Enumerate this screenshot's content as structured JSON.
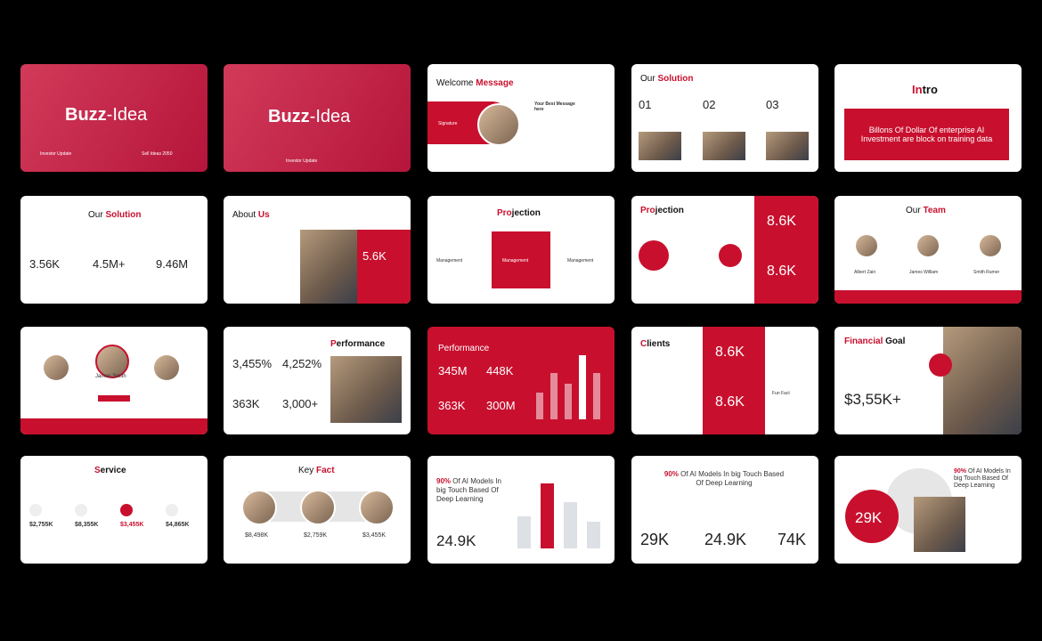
{
  "slides": [
    {
      "title_a": "Buzz",
      "title_b": "-Idea",
      "left": "Investor Update",
      "right": "Sell Ideas 2050"
    },
    {
      "title_a": "Buzz",
      "title_b": "-Idea",
      "subtitle": "Investor Update"
    },
    {
      "title_a": "Welcome",
      "title_b": "Message",
      "label": "Signature",
      "heading": "Your Best Message here"
    },
    {
      "title_a": "Our",
      "title_b": "Solution",
      "items": [
        "01",
        "02",
        "03"
      ]
    },
    {
      "title_a": "In",
      "title_b": "tro",
      "text": "Billons Of Dollar  Of enterprise AI Investment  are block on training data"
    },
    {
      "title_a": "Our",
      "title_b": "Solution",
      "stats": [
        "3.56K",
        "4.5M+",
        "9.46M"
      ]
    },
    {
      "title_a": "About",
      "title_b": "Us",
      "stat": "5.6K"
    },
    {
      "title_a": "Pro",
      "title_b": "jection",
      "items": [
        "Management",
        "Management",
        "Management"
      ]
    },
    {
      "title_a": "Pro",
      "title_b": "jection",
      "stats": [
        "8.6K",
        "8.6K"
      ]
    },
    {
      "title_a": "Our",
      "title_b": "Team",
      "names": [
        "Albert Zain",
        "James William",
        "Smith Rumer"
      ]
    },
    {
      "name": "James Smith"
    },
    {
      "title_a": "P",
      "title_b": "erformance",
      "stats": [
        "3,455%",
        "4,252%",
        "363K",
        "3,000+"
      ]
    },
    {
      "title": "Performance",
      "stats": [
        "345M",
        "448K",
        "363K",
        "300M"
      ]
    },
    {
      "title_a": "C",
      "title_b": "lients",
      "stats": [
        "8.6K",
        "8.6K"
      ],
      "label": "Fun Fact"
    },
    {
      "title_a": "Financial",
      "title_b": "Goal",
      "stat": "$3,55K+"
    },
    {
      "title_a": "S",
      "title_b": "ervice",
      "stats": [
        "$2,755K",
        "$8,355K",
        "$3,455K",
        "$4,865K"
      ]
    },
    {
      "title_a": "Key",
      "title_b": "Fact",
      "stats": [
        "$8,498K",
        "$2,759K",
        "$3,455K"
      ]
    },
    {
      "title_a": "90%",
      "title_b": " Of AI Models In big Touch Based Of Deep Learning",
      "stat": "24.9K"
    },
    {
      "title_a": "90%",
      "title_b": " Of AI Models In big Touch Based Of Deep Learning",
      "stats": [
        "29K",
        "24.9K",
        "74K"
      ]
    },
    {
      "title_a": "90%",
      "title_b": " Of AI Models In big Touch Based Of Deep Learning",
      "stat": "29K"
    }
  ]
}
